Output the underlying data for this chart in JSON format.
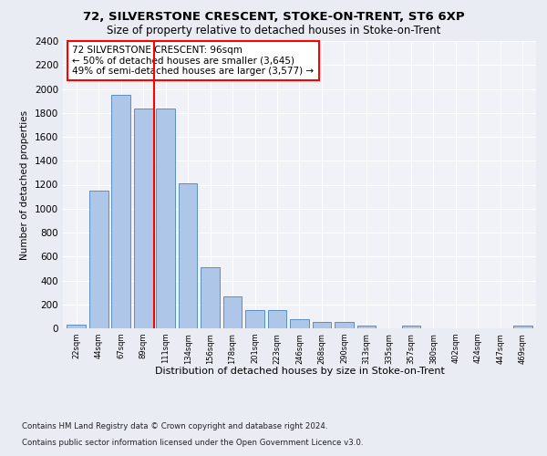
{
  "title1": "72, SILVERSTONE CRESCENT, STOKE-ON-TRENT, ST6 6XP",
  "title2": "Size of property relative to detached houses in Stoke-on-Trent",
  "xlabel": "Distribution of detached houses by size in Stoke-on-Trent",
  "ylabel": "Number of detached properties",
  "bins": [
    "22sqm",
    "44sqm",
    "67sqm",
    "89sqm",
    "111sqm",
    "134sqm",
    "156sqm",
    "178sqm",
    "201sqm",
    "223sqm",
    "246sqm",
    "268sqm",
    "290sqm",
    "313sqm",
    "335sqm",
    "357sqm",
    "380sqm",
    "402sqm",
    "424sqm",
    "447sqm",
    "469sqm"
  ],
  "values": [
    30,
    1150,
    1950,
    1840,
    1840,
    1215,
    510,
    265,
    155,
    155,
    80,
    50,
    50,
    25,
    0,
    20,
    0,
    0,
    0,
    0,
    20
  ],
  "bar_color": "#aec6e8",
  "bar_edge_color": "#5a8fc2",
  "vline_x": 3.5,
  "vline_color": "red",
  "annotation_text": "72 SILVERSTONE CRESCENT: 96sqm\n← 50% of detached houses are smaller (3,645)\n49% of semi-detached houses are larger (3,577) →",
  "annotation_box_color": "white",
  "annotation_box_edge": "red",
  "ylim": [
    0,
    2400
  ],
  "yticks": [
    0,
    200,
    400,
    600,
    800,
    1000,
    1200,
    1400,
    1600,
    1800,
    2000,
    2200,
    2400
  ],
  "footer1": "Contains HM Land Registry data © Crown copyright and database right 2024.",
  "footer2": "Contains public sector information licensed under the Open Government Licence v3.0.",
  "bg_color": "#eaecf4",
  "plot_bg_color": "#f0f2f8"
}
